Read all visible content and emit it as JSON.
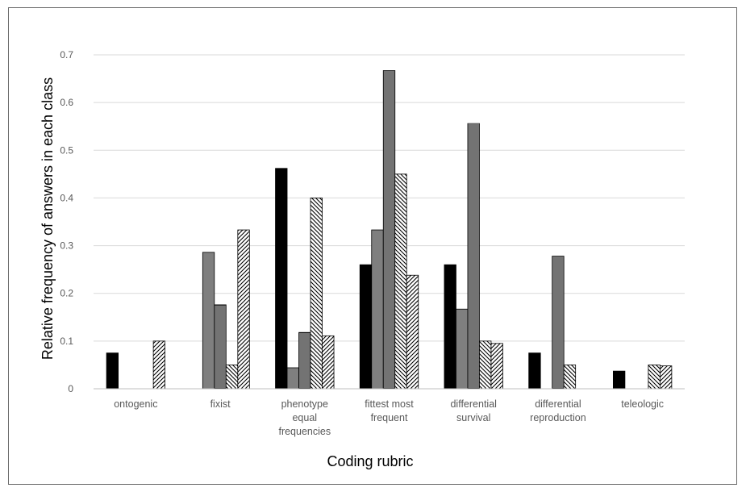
{
  "chart_data": {
    "type": "bar",
    "xlabel": "Coding rubric",
    "ylabel": "Relative frequency of answers in each class",
    "ylim": [
      0,
      0.7
    ],
    "yticks": [
      "0",
      "0.1",
      "0.2",
      "0.3",
      "0.4",
      "0.5",
      "0.6",
      "0.7"
    ],
    "grid": true,
    "categories": [
      [
        "ontogenic"
      ],
      [
        "fixist"
      ],
      [
        "phenotype",
        "equal",
        "frequencies"
      ],
      [
        "fittest most",
        "frequent"
      ],
      [
        "differential",
        "survival"
      ],
      [
        "differential",
        "reproduction"
      ],
      [
        "teleologic"
      ]
    ],
    "series": [
      {
        "pattern": "solid-black",
        "values": [
          0.075,
          0,
          0.462,
          0.26,
          0.26,
          0.075,
          0.037
        ]
      },
      {
        "pattern": "solid-gray",
        "values": [
          0,
          0.286,
          0.044,
          0.333,
          0.167,
          0,
          0
        ]
      },
      {
        "pattern": "horizontal-lines",
        "values": [
          0,
          0.176,
          0.118,
          0.667,
          0.556,
          0.278,
          0
        ]
      },
      {
        "pattern": "diagonal-backslash",
        "values": [
          0,
          0.05,
          0.4,
          0.45,
          0.1,
          0.05,
          0.05
        ]
      },
      {
        "pattern": "diagonal-slash",
        "values": [
          0.1,
          0.333,
          0.111,
          0.238,
          0.095,
          0,
          0.048
        ]
      }
    ],
    "colors": {
      "black": "#000000",
      "gray": "#7f7f7f",
      "grid": "#d9d9d9",
      "axis": "#bfbfbf"
    }
  }
}
